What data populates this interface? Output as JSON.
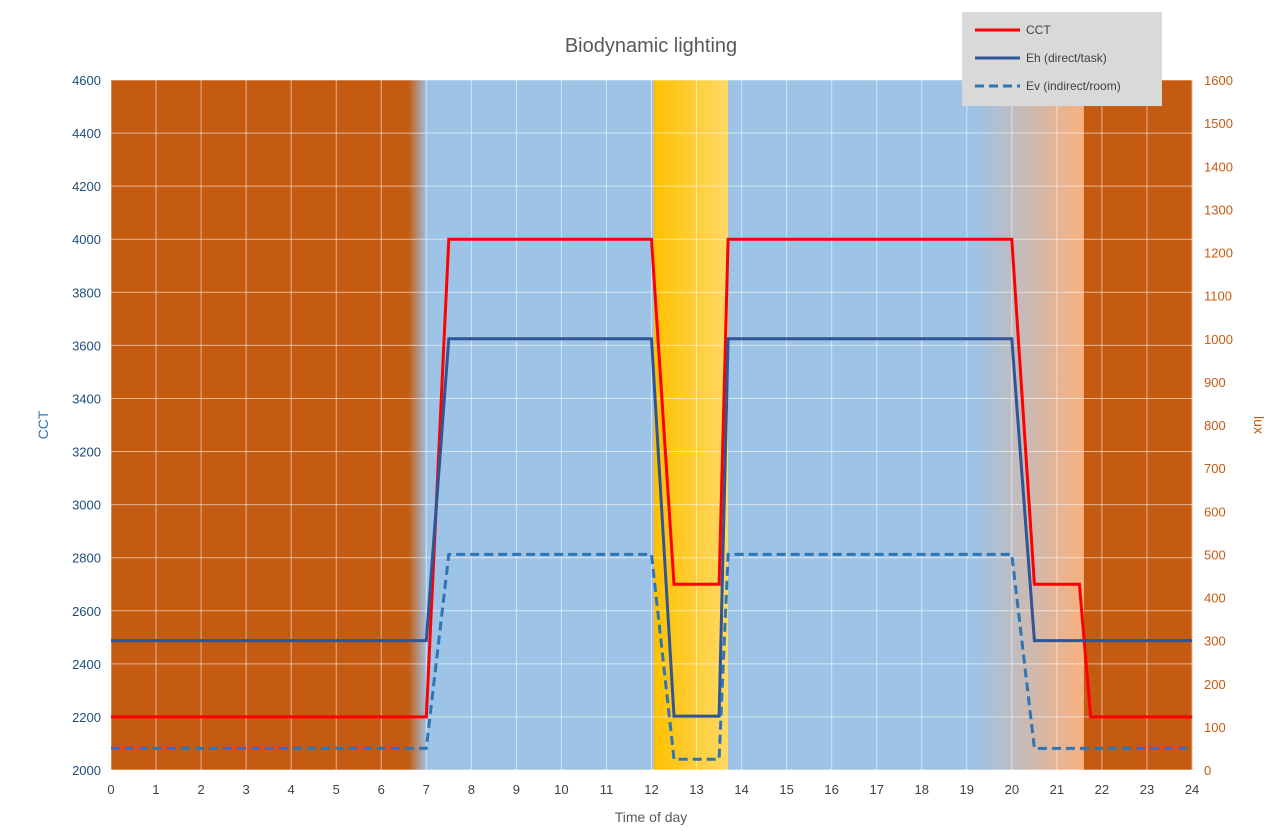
{
  "chart_data": {
    "type": "line",
    "title": "Biodynamic lighting",
    "xlabel": "Time of day",
    "ylabel_left": "CCT",
    "ylabel_right": "lux",
    "xlim": [
      0,
      24
    ],
    "ylim_left": [
      2000,
      4600
    ],
    "ylim_right": [
      0,
      1600
    ],
    "x_ticks": [
      0,
      1,
      2,
      3,
      4,
      5,
      6,
      7,
      8,
      9,
      10,
      11,
      12,
      13,
      14,
      15,
      16,
      17,
      18,
      19,
      20,
      21,
      22,
      23,
      24
    ],
    "y_ticks_left": [
      2000,
      2200,
      2400,
      2600,
      2800,
      3000,
      3200,
      3400,
      3600,
      3800,
      4000,
      4200,
      4400,
      4600
    ],
    "y_ticks_right": [
      0,
      100,
      200,
      300,
      400,
      500,
      600,
      700,
      800,
      900,
      1000,
      1100,
      1200,
      1300,
      1400,
      1500,
      1600
    ],
    "grid": true,
    "legend_position": "top-right",
    "background_bands": [
      {
        "from": 0,
        "to": 6.6,
        "color": "#c55a11"
      },
      {
        "from": 6.6,
        "to": 7.0,
        "color_from": "#c55a11",
        "color_to": "#9dc3e6"
      },
      {
        "from": 7.0,
        "to": 12.05,
        "color": "#9dc3e6"
      },
      {
        "from": 12.05,
        "to": 13.7,
        "color_from": "#ffc000",
        "color_to": "#ffd966"
      },
      {
        "from": 13.7,
        "to": 19.2,
        "color": "#9dc3e6"
      },
      {
        "from": 19.2,
        "to": 21.4,
        "color_from": "#9dc3e6",
        "color_to": "#f4b183"
      },
      {
        "from": 21.4,
        "to": 21.6,
        "color": "#f4b183"
      },
      {
        "from": 21.6,
        "to": 24,
        "color": "#c55a11"
      }
    ],
    "series": [
      {
        "name": "CCT",
        "axis": "left",
        "color": "#ff0000",
        "style": "solid",
        "x": [
          0,
          7,
          7.5,
          12,
          12.5,
          13.5,
          13.7,
          20,
          20.5,
          21.5,
          21.75,
          24
        ],
        "y": [
          2200,
          2200,
          4000,
          4000,
          2700,
          2700,
          4000,
          4000,
          2700,
          2700,
          2200,
          2200
        ]
      },
      {
        "name": "Eh (direct/task)",
        "axis": "right",
        "color": "#2f5597",
        "style": "solid",
        "x": [
          0,
          7,
          7.5,
          12,
          12.5,
          13.5,
          13.7,
          20,
          20.5,
          24
        ],
        "y": [
          300,
          300,
          1000,
          1000,
          125,
          125,
          1000,
          1000,
          300,
          300
        ]
      },
      {
        "name": "Ev (indirect/room)",
        "axis": "right",
        "color": "#2e75b6",
        "style": "dashed",
        "x": [
          0,
          7,
          7.5,
          12,
          12.5,
          13.5,
          13.7,
          20,
          20.5,
          24
        ],
        "y": [
          50,
          50,
          500,
          500,
          25,
          25,
          500,
          500,
          50,
          50
        ]
      }
    ]
  }
}
